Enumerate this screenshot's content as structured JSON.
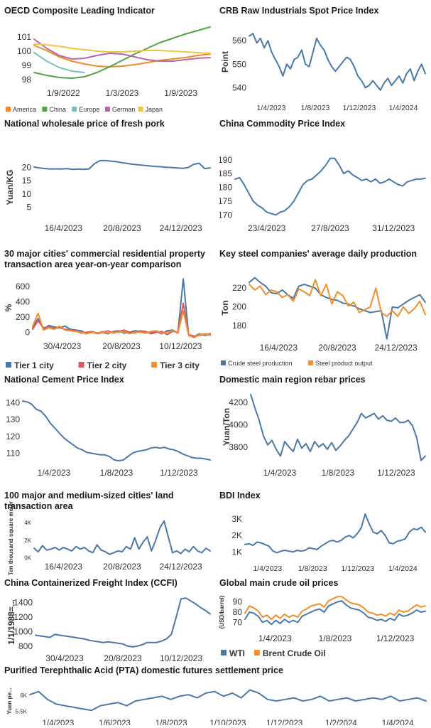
{
  "chart_data": [
    {
      "id": "oecd",
      "type": "line",
      "title": "OECD Composite Leading Indicator",
      "ylabel": "",
      "xlabel": "",
      "ylim": [
        97.6,
        101.6
      ],
      "yticks": [
        98,
        99,
        100,
        101
      ],
      "xticks": [
        "1/9/2022",
        "1/3/2023",
        "1/9/2023"
      ],
      "legend_position": "bottom",
      "series": [
        {
          "name": "America",
          "color": "#ED8B2F",
          "values": [
            100.4,
            100.05,
            99.6,
            99.3,
            99.1,
            98.95,
            98.9,
            98.95,
            99.05,
            99.2,
            99.35,
            99.45,
            99.55,
            99.7,
            99.8
          ]
        },
        {
          "name": "China",
          "color": "#56A04B",
          "values": [
            98.5,
            98.3,
            98.15,
            98.1,
            98.2,
            98.5,
            98.9,
            99.35,
            99.8,
            100.2,
            100.6,
            100.9,
            101.2,
            101.45,
            101.7
          ]
        },
        {
          "name": "Europe",
          "color": "#7EBDBE",
          "values": [
            99.9,
            99.3,
            98.85,
            98.6,
            98.5,
            null,
            null,
            null,
            null,
            null,
            null,
            null,
            null,
            null,
            null
          ]
        },
        {
          "name": "German",
          "color": "#B26AA3",
          "values": [
            100.85,
            100.2,
            99.7,
            99.45,
            99.5,
            99.7,
            99.85,
            99.8,
            99.6,
            99.4,
            99.3,
            99.3,
            99.4,
            99.5,
            99.55
          ]
        },
        {
          "name": "Japan",
          "color": "#EFC547",
          "values": [
            100.5,
            100.45,
            100.35,
            100.2,
            100.1,
            100.0,
            99.95,
            99.95,
            100.0,
            100.05,
            100.05,
            100.0,
            99.95,
            99.9,
            99.85
          ]
        }
      ]
    },
    {
      "id": "crb",
      "type": "line",
      "title": "CRB Raw Industrials Spot Price Index",
      "ylabel": "Point",
      "ylim": [
        535,
        567
      ],
      "yticks": [
        540,
        550,
        560
      ],
      "xticks": [
        "1/4/2023",
        "1/8/2023",
        "1/12/2023",
        "1/4/2024"
      ],
      "series": [
        {
          "name": "",
          "color": "#4A78A8",
          "values": [
            562,
            563,
            559,
            561,
            557,
            560,
            555,
            552,
            549,
            545,
            550,
            548,
            552,
            553,
            556,
            550,
            549,
            555,
            561,
            558,
            556,
            552,
            549,
            547,
            549,
            551,
            553,
            552,
            549,
            545,
            543,
            540,
            541,
            543,
            541,
            539,
            542,
            544,
            541,
            543,
            545,
            542,
            546,
            548,
            543,
            547,
            550,
            546
          ]
        }
      ]
    },
    {
      "id": "pork",
      "type": "line",
      "title": "National wholesale price of fresh pork",
      "ylabel": "Yuan/KG",
      "ylim": [
        0,
        25
      ],
      "yticks": [
        5,
        10,
        15,
        20
      ],
      "xticks": [
        "16/4/2023",
        "20/8/2023",
        "24/12/2023"
      ],
      "series": [
        {
          "name": "",
          "color": "#4A78A8",
          "values": [
            20.2,
            19.8,
            19.6,
            19.4,
            19.5,
            19.4,
            19.6,
            19.3,
            19.4,
            19.3,
            19.5,
            21.5,
            22.6,
            22.6,
            22.4,
            22.2,
            21.8,
            21.5,
            21.2,
            21.0,
            20.8,
            20.6,
            20.4,
            20.3,
            20.1,
            20.0,
            19.8,
            19.7,
            20.0,
            21.2,
            21.6,
            19.6,
            19.8
          ]
        }
      ]
    },
    {
      "id": "ccpi",
      "type": "line",
      "title": "China Commodity Price Index",
      "ylabel": "",
      "ylim": [
        168,
        192
      ],
      "yticks": [
        170,
        175,
        180,
        185,
        190
      ],
      "xticks": [
        "23/4/2023",
        "27/8/2023",
        "31/12/2023"
      ],
      "series": [
        {
          "name": "",
          "color": "#4A78A8",
          "values": [
            183,
            183.5,
            181,
            178,
            175,
            173.5,
            172.5,
            171,
            170.5,
            170,
            171,
            171.5,
            173,
            175,
            178,
            181,
            182.5,
            183,
            184.5,
            186,
            188,
            190.5,
            190.5,
            188,
            185,
            186,
            184.5,
            183.5,
            182.5,
            183,
            182,
            183,
            181.5,
            182,
            183,
            182,
            181,
            180.5,
            182,
            182.5,
            183,
            183,
            183.3
          ]
        }
      ]
    },
    {
      "id": "property",
      "type": "line",
      "title": "30 major cities' commercial residential property transaction area year-on-year comparison",
      "ylabel": "%",
      "ylim": [
        -80,
        720
      ],
      "yticks": [
        0,
        200,
        400,
        600
      ],
      "xticks": [
        "30/4/2023",
        "20/8/2023",
        "10/12/2023"
      ],
      "series": [
        {
          "name": "Tier 1 city",
          "color": "#4A78A8",
          "values": [
            60,
            180,
            40,
            90,
            70,
            60,
            80,
            40,
            30,
            20,
            -20,
            10,
            -10,
            0,
            -20,
            10,
            20,
            -10,
            0,
            20,
            10,
            -10,
            0,
            10,
            -20,
            20,
            30,
            -10,
            700,
            -40,
            -60,
            -20,
            -40,
            -30
          ]
        },
        {
          "name": "Tier 2 city",
          "color": "#E15759",
          "values": [
            40,
            150,
            60,
            70,
            50,
            60,
            40,
            30,
            20,
            -10,
            0,
            10,
            -20,
            0,
            20,
            -10,
            10,
            30,
            0,
            -10,
            20,
            10,
            -20,
            0,
            10,
            -30,
            10,
            0,
            380,
            -30,
            -50,
            -40,
            -30,
            -20
          ]
        },
        {
          "name": "Tier 3 city",
          "color": "#F28E2B",
          "values": [
            80,
            250,
            30,
            60,
            40,
            80,
            30,
            20,
            10,
            0,
            -20,
            0,
            -10,
            10,
            -10,
            0,
            0,
            10,
            -20,
            0,
            0,
            -10,
            10,
            20,
            -10,
            0,
            20,
            -10,
            280,
            -40,
            -70,
            -30,
            -20,
            -40
          ]
        }
      ]
    },
    {
      "id": "steel",
      "type": "line",
      "title": "Key steel companies' average daily production",
      "ylabel": "Ton",
      "ylim": [
        165,
        233
      ],
      "yticks": [
        180,
        200,
        220
      ],
      "xticks": [
        "16/4/2023",
        "20/8/2023",
        "24/12/2023"
      ],
      "series": [
        {
          "name": "Crude steel production",
          "color": "#4A78A8",
          "values": [
            226,
            231,
            226,
            222,
            215,
            214,
            218,
            213,
            209,
            222,
            224,
            222,
            220,
            213,
            210,
            208,
            207,
            204,
            203,
            201,
            198,
            196,
            194,
            195,
            196,
            166,
            200,
            199,
            203,
            207,
            210,
            213,
            205
          ]
        },
        {
          "name": "Steel product output",
          "color": "#F28E2B",
          "values": [
            224,
            218,
            222,
            213,
            218,
            216,
            210,
            213,
            206,
            219,
            216,
            212,
            229,
            212,
            224,
            203,
            216,
            212,
            201,
            205,
            194,
            197,
            200,
            220,
            194,
            190,
            196,
            190,
            200,
            193,
            198,
            206,
            192
          ]
        }
      ]
    },
    {
      "id": "cement",
      "type": "line",
      "title": "National Cement Price Index",
      "ylabel": "",
      "ylim": [
        103,
        144
      ],
      "yticks": [
        110,
        120,
        130,
        140
      ],
      "xticks": [
        "1/4/2023",
        "1/8/2023",
        "1/12/2023"
      ],
      "series": [
        {
          "name": "",
          "color": "#4A78A8",
          "values": [
            141,
            140.5,
            139,
            136,
            135,
            132,
            128,
            125,
            122,
            119,
            117,
            115,
            113,
            112,
            110.5,
            110,
            109.5,
            109,
            109,
            108,
            106,
            105.5,
            106,
            108,
            110,
            111,
            111.5,
            112,
            113,
            113.5,
            113,
            113.5,
            112.5,
            112,
            111,
            109.5,
            108.5,
            107.5,
            107,
            107,
            106.5,
            106
          ]
        }
      ]
    },
    {
      "id": "rebar",
      "type": "line",
      "title": "Domestic main region rebar prices",
      "ylabel": "Yuan/Ton",
      "ylim": [
        3640,
        4320
      ],
      "yticks": [
        3800,
        4000,
        4200
      ],
      "xticks": [
        "1/4/2023",
        "1/8/2023",
        "1/12/2023"
      ],
      "series": [
        {
          "name": "",
          "color": "#4A78A8",
          "values": [
            4270,
            4150,
            4040,
            3900,
            3820,
            3860,
            3780,
            3720,
            3850,
            3800,
            3760,
            3870,
            3790,
            3830,
            3760,
            3850,
            3800,
            3830,
            3780,
            3840,
            3770,
            3810,
            3860,
            3900,
            3960,
            4020,
            4100,
            4060,
            4080,
            4100,
            4050,
            4080,
            4040,
            4030,
            4060,
            4020,
            4020,
            4040,
            3990,
            3880,
            3680,
            3720
          ]
        }
      ]
    },
    {
      "id": "land",
      "type": "line",
      "title": "100 major and medium-sized cities' land transaction area",
      "ylabel": "Ten thousand square meter",
      "ylim": [
        -200,
        4500
      ],
      "yticks": [
        0,
        2000,
        4000
      ],
      "ytick_labels": [
        "0K",
        "2K",
        "4K"
      ],
      "xticks": [
        "16/4/2023",
        "20/8/2023",
        "24/12/2023"
      ],
      "series": [
        {
          "name": "",
          "color": "#4A78A8",
          "values": [
            1000,
            600,
            1300,
            800,
            900,
            1100,
            800,
            1100,
            900,
            700,
            1200,
            900,
            1100,
            700,
            500,
            1400,
            800,
            600,
            300,
            500,
            700,
            600,
            1200,
            900,
            2200,
            900,
            1700,
            2300,
            700,
            1900,
            3300,
            4100,
            2300,
            500,
            700,
            400,
            900,
            600,
            1200,
            700,
            500,
            1000,
            700
          ]
        }
      ]
    },
    {
      "id": "bdi",
      "type": "line",
      "title": "BDI Index",
      "ylabel": "",
      "ylim": [
        500,
        3600
      ],
      "yticks": [
        1000,
        2000,
        3000
      ],
      "ytick_labels": [
        "1K",
        "2K",
        "3K"
      ],
      "xticks": [
        "1/4/2023",
        "1/8/2023",
        "1/12/2023",
        "1/4/2024"
      ],
      "series": [
        {
          "name": "",
          "color": "#4A78A8",
          "values": [
            1450,
            1500,
            1400,
            1600,
            1550,
            1450,
            1350,
            1050,
            950,
            1050,
            1100,
            1050,
            1000,
            1100,
            1050,
            1100,
            1250,
            1200,
            1150,
            1350,
            1500,
            1650,
            1700,
            1600,
            1700,
            1900,
            2000,
            1850,
            2100,
            2450,
            3300,
            2700,
            2200,
            2100,
            2300,
            2000,
            1550,
            1500,
            1650,
            1700,
            1800,
            2200,
            2400,
            2350,
            2500,
            2200
          ]
        }
      ]
    },
    {
      "id": "ccfi",
      "type": "line",
      "title": "China Containerized Freight Index (CCFI)",
      "ylabel": "1/1/1988=...",
      "ylim": [
        740,
        1520
      ],
      "yticks": [
        800,
        1000,
        1200,
        1400
      ],
      "xticks": [
        "30/4/2023",
        "20/8/2023",
        "10/12/2023"
      ],
      "series": [
        {
          "name": "",
          "color": "#4A78A8",
          "values": [
            950,
            940,
            930,
            920,
            960,
            950,
            940,
            930,
            920,
            910,
            900,
            880,
            870,
            860,
            850,
            860,
            850,
            840,
            830,
            800,
            790,
            800,
            820,
            850,
            850,
            850,
            870,
            900,
            960,
            1200,
            1450,
            1460,
            1420,
            1380,
            1330,
            1290,
            1240
          ]
        }
      ]
    },
    {
      "id": "oil",
      "type": "line",
      "title": "Global main crude oil prices",
      "ylabel": "(USD/barrel)",
      "ylim": [
        62,
        98
      ],
      "yticks": [
        70,
        80,
        90
      ],
      "xticks": [
        "1/4/2023",
        "1/8/2023",
        "1/12/2023"
      ],
      "series": [
        {
          "name": "WTI",
          "color": "#4A78A8",
          "values": [
            73,
            80,
            79,
            76,
            70,
            72,
            68,
            72,
            69,
            73,
            70,
            72,
            70,
            76,
            78,
            80,
            82,
            83,
            80,
            86,
            88,
            90,
            91,
            87,
            84,
            83,
            82,
            79,
            75,
            74,
            72,
            73,
            71,
            74,
            72,
            78,
            76,
            77,
            79,
            82,
            80,
            81
          ]
        },
        {
          "name": "Brent Crude Oil",
          "color": "#F28E2B",
          "values": [
            79,
            86,
            84,
            81,
            75,
            77,
            73,
            77,
            74,
            78,
            75,
            77,
            75,
            81,
            83,
            86,
            87,
            88,
            85,
            91,
            93,
            95,
            95,
            92,
            89,
            88,
            87,
            84,
            80,
            79,
            77,
            78,
            76,
            79,
            77,
            82,
            80,
            81,
            84,
            87,
            85,
            86
          ]
        }
      ]
    },
    {
      "id": "pta",
      "type": "line",
      "title": "Purified Terephthalic Acid (PTA) domestic futures settlement price",
      "ylabel": "Yuan pe...",
      "ylim": [
        5350,
        6250
      ],
      "yticks": [
        5500,
        6000
      ],
      "ytick_labels": [
        "5.5K",
        "6K"
      ],
      "xticks": [
        "1/4/2023",
        "1/6/2023",
        "1/8/2023",
        "1/10/2023",
        "1/12/2023",
        "1/2/2024",
        "1/4/2024"
      ],
      "series": [
        {
          "name": "",
          "color": "#4A78A8",
          "values": [
            6000,
            6100,
            5850,
            5700,
            5650,
            5600,
            5550,
            5500,
            5650,
            5700,
            5750,
            5650,
            5800,
            5850,
            5900,
            5950,
            5850,
            5950,
            6000,
            5900,
            6050,
            6100,
            5950,
            6050,
            5900,
            6150,
            6050,
            5850,
            5800,
            5850,
            5900,
            5800,
            5850,
            5950,
            5800,
            5850,
            5900,
            5800,
            5850,
            5900,
            5850,
            5950,
            5800,
            5850,
            5900,
            5800
          ]
        }
      ]
    }
  ]
}
